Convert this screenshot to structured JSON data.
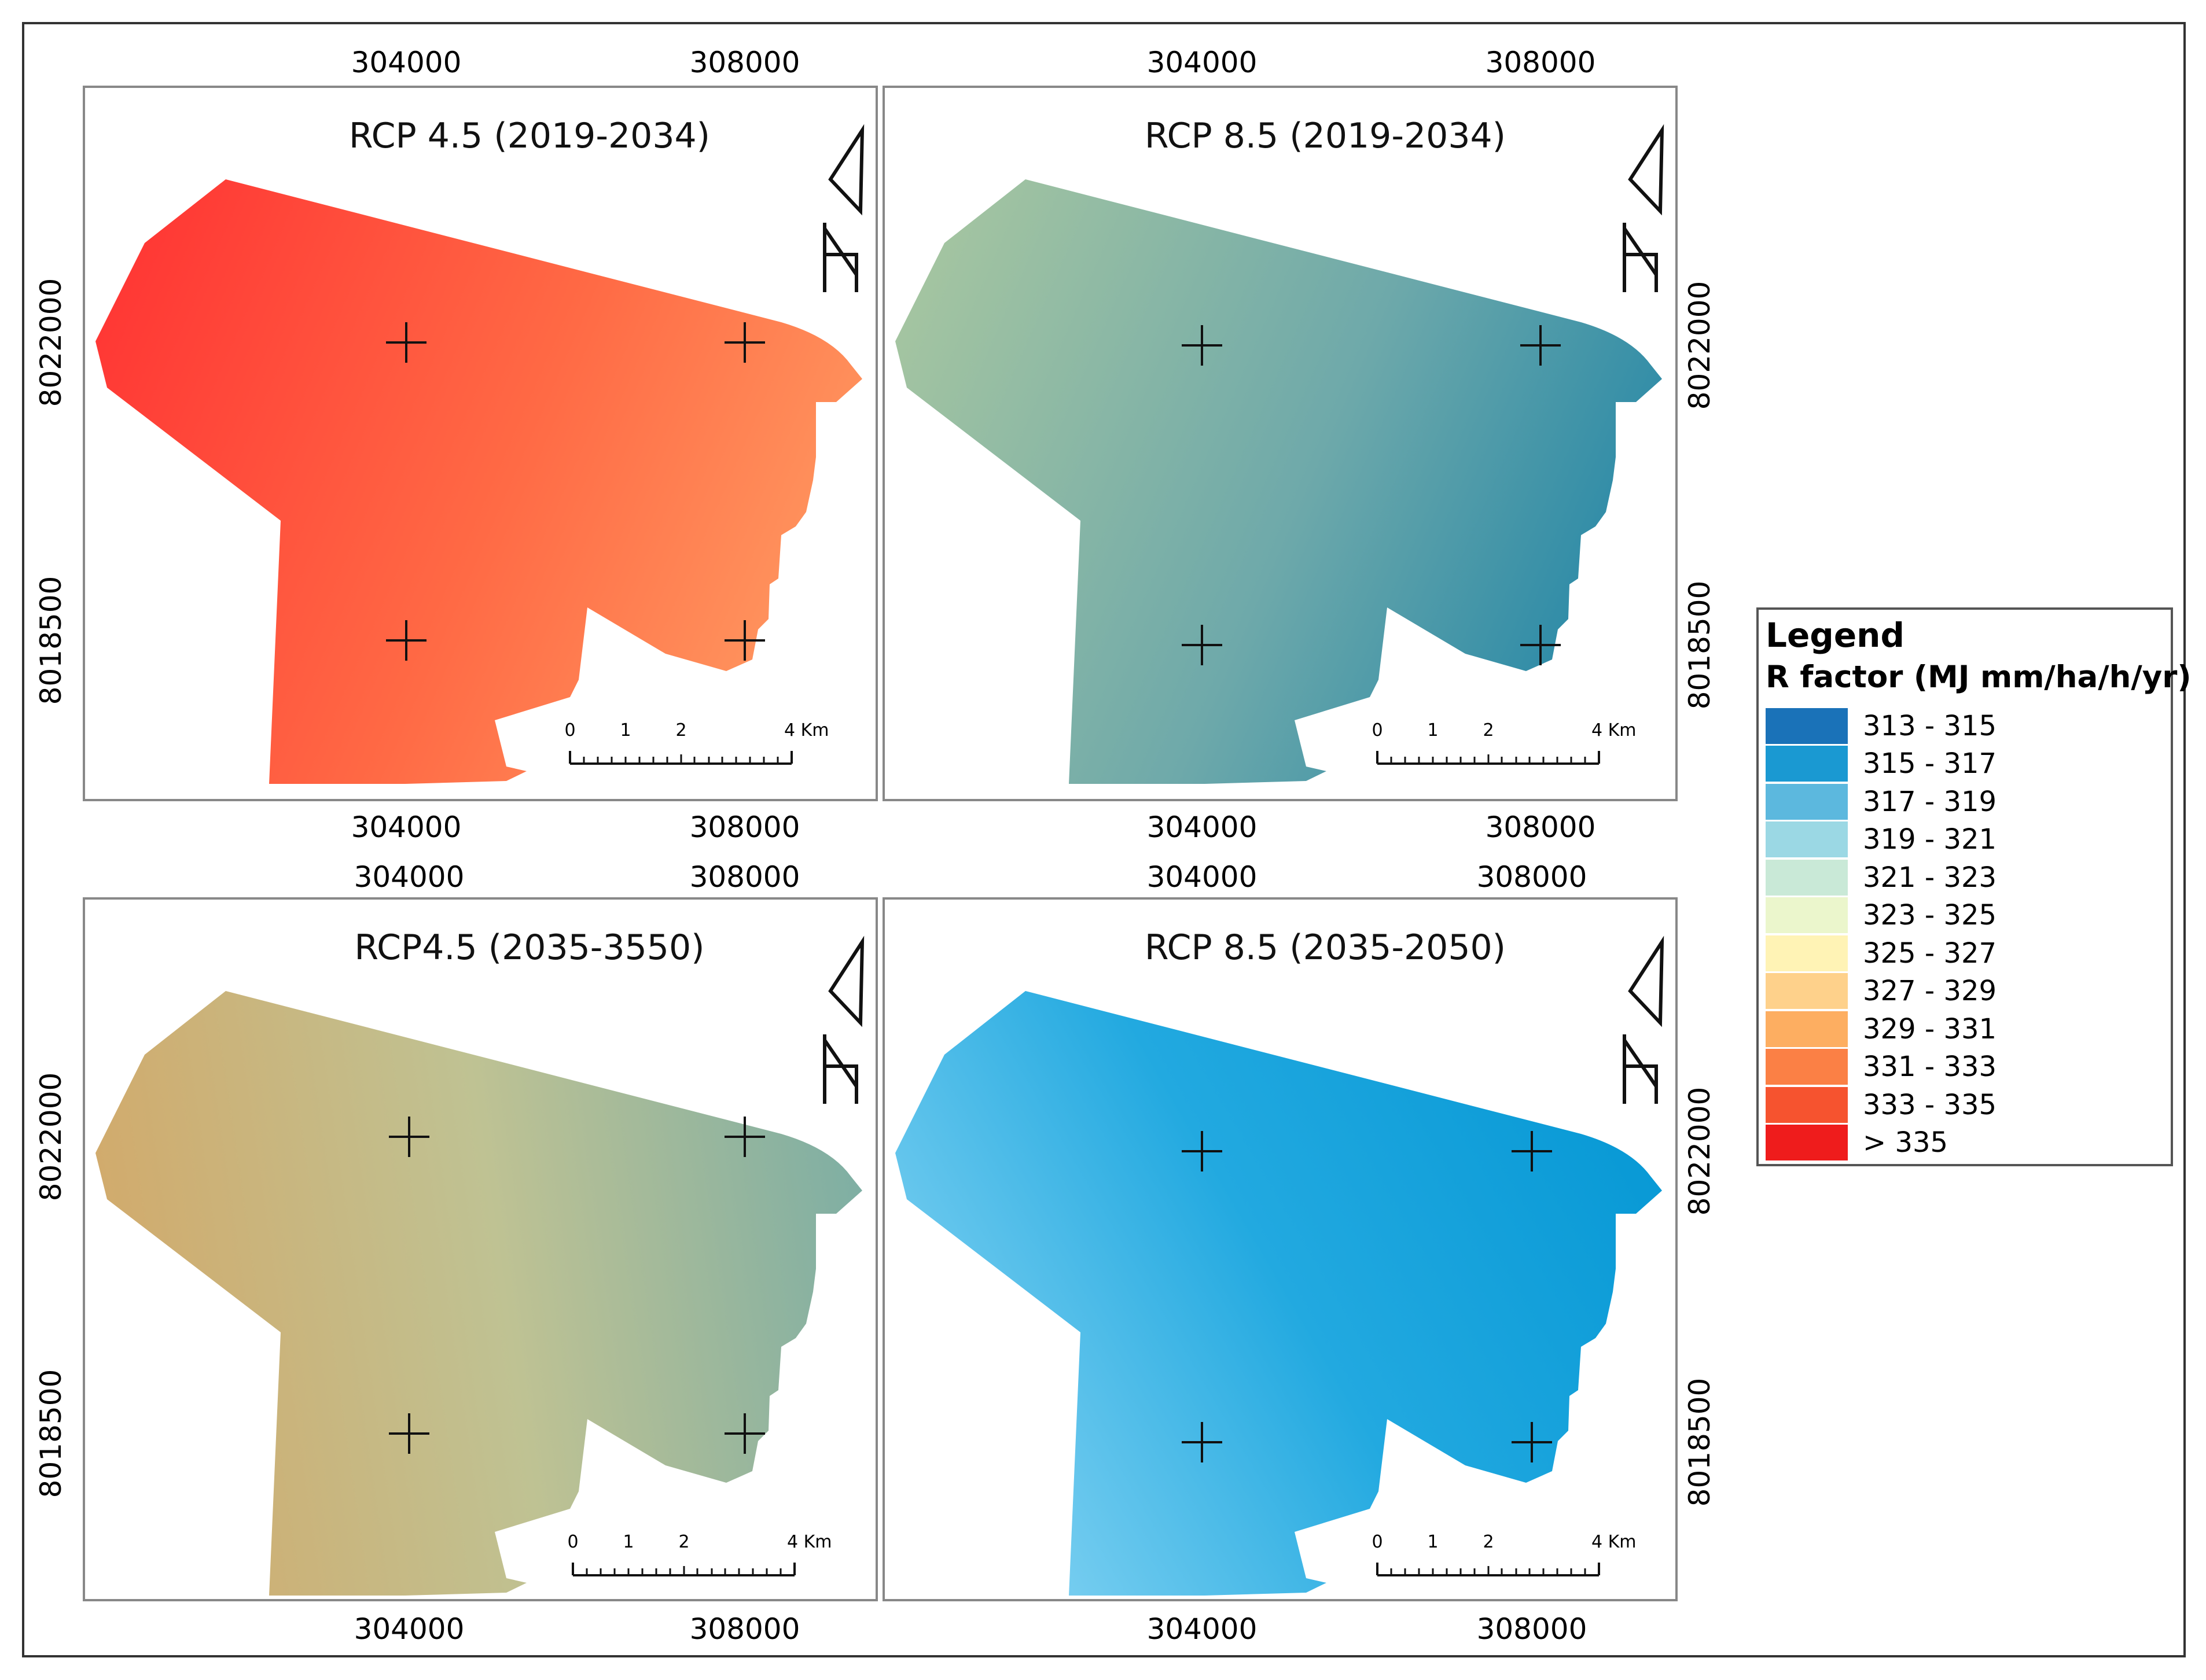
{
  "maps": [
    {
      "title": "RCP 4.5 (2019-2034)",
      "colors": {
        "west": "#ff3333",
        "mid": "#ff6a45",
        "east": "#ff9d63"
      },
      "top_x_labels": [
        "304000",
        "308000"
      ],
      "bottom_x_labels": [
        "304000",
        "308000"
      ],
      "left_y_labels": [
        "8022000",
        "8018500"
      ],
      "right_y_labels": [],
      "scale": {
        "ticks": [
          "0",
          "1",
          "2",
          "4 Km"
        ]
      }
    },
    {
      "title": "RCP 8.5 (2019-2034)",
      "colors": {
        "west": "#a9c7a0",
        "mid": "#6ea9aa",
        "east": "#1e84a7"
      },
      "top_x_labels": [
        "304000",
        "308000"
      ],
      "bottom_x_labels": [
        "304000",
        "308000"
      ],
      "left_y_labels": [],
      "right_y_labels": [
        "8022000",
        "8018500"
      ],
      "scale": {
        "ticks": [
          "0",
          "1",
          "2",
          "4 Km"
        ]
      }
    },
    {
      "title": "RCP4.5 (2035-3550)",
      "colors": {
        "west": "#d2aa6b",
        "mid": "#bfc293",
        "east": "#79ada5"
      },
      "top_x_labels": [
        "304000",
        "308000"
      ],
      "bottom_x_labels": [
        "304000",
        "308000"
      ],
      "left_y_labels": [
        "8022000",
        "8018500"
      ],
      "right_y_labels": [],
      "scale": {
        "ticks": [
          "0",
          "1",
          "2",
          "4 Km"
        ]
      }
    },
    {
      "title": "RCP 8.5 (2035-2050)",
      "colors": {
        "west": "#86d4f3",
        "mid": "#22a9e0",
        "east": "#0094d2"
      },
      "top_x_labels": [
        "304000",
        "308000"
      ],
      "bottom_x_labels": [
        "304000",
        "308000"
      ],
      "left_y_labels": [],
      "right_y_labels": [
        "8022000",
        "8018500"
      ],
      "scale": {
        "ticks": [
          "0",
          "1",
          "2",
          "4 Km"
        ]
      }
    }
  ],
  "legend": {
    "title": "Legend",
    "subtitle": "R factor (MJ mm/ha/h/yr)",
    "classes": [
      {
        "label": "313 - 315",
        "color": "#1a72b8"
      },
      {
        "label": "315 - 317",
        "color": "#1a99d2"
      },
      {
        "label": "317 - 319",
        "color": "#5cb8de"
      },
      {
        "label": "319 - 321",
        "color": "#9bd8e4"
      },
      {
        "label": "321 - 323",
        "color": "#c9e9d7"
      },
      {
        "label": "323 - 325",
        "color": "#ebf6cc"
      },
      {
        "label": "325 - 327",
        "color": "#fff3b5"
      },
      {
        "label": "327 - 329",
        "color": "#fed18b"
      },
      {
        "label": "329 - 331",
        "color": "#fdae61"
      },
      {
        "label": "331 - 333",
        "color": "#fb8045"
      },
      {
        "label": "333 - 335",
        "color": "#f6532f"
      },
      {
        "label": "> 335",
        "color": "#ef1c1c"
      }
    ]
  }
}
